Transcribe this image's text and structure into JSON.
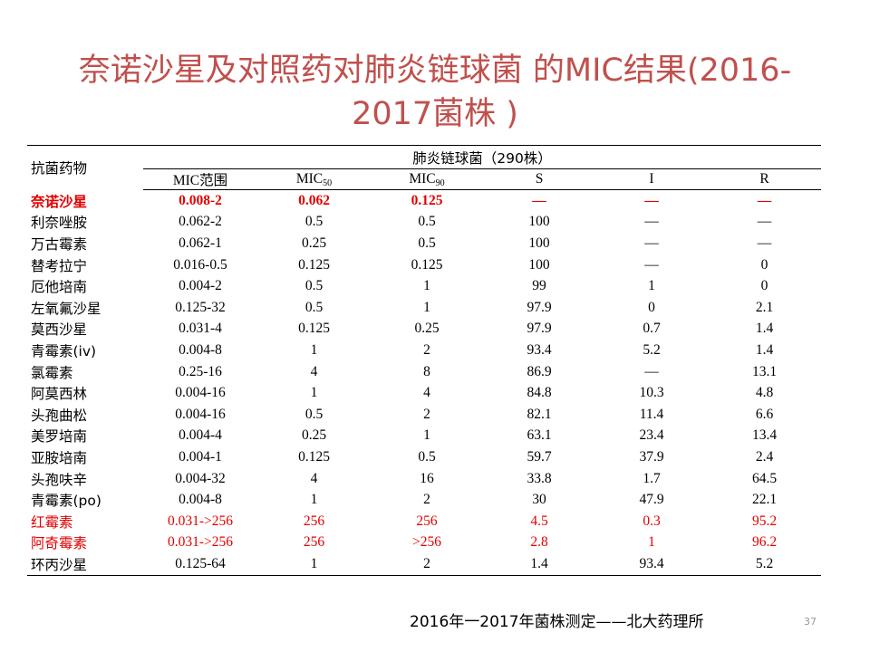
{
  "title_line1": "奈诺沙星及对照药对肺炎链球菌 的MIC结果(2016-",
  "title_line2": "2017菌株 )",
  "table": {
    "drug_header": "抗菌药物",
    "group_header": "肺炎链球菌（290株）",
    "col_range": "MIC范围",
    "col_mic50_base": "MIC",
    "col_mic50_sub": "50",
    "col_mic90_base": "MIC",
    "col_mic90_sub": "90",
    "col_s": "S",
    "col_i": "I",
    "col_r": "R",
    "rows": [
      {
        "name": "奈诺沙星",
        "range": "0.008-2",
        "mic50": "0.062",
        "mic90": "0.125",
        "s": "—",
        "i": "—",
        "r": "—"
      },
      {
        "name": "利奈唑胺",
        "range": "0.062-2",
        "mic50": "0.5",
        "mic90": "0.5",
        "s": "100",
        "i": "—",
        "r": "—"
      },
      {
        "name": "万古霉素",
        "range": "0.062-1",
        "mic50": "0.25",
        "mic90": "0.5",
        "s": "100",
        "i": "—",
        "r": "—"
      },
      {
        "name": "替考拉宁",
        "range": "0.016-0.5",
        "mic50": "0.125",
        "mic90": "0.125",
        "s": "100",
        "i": "—",
        "r": "0"
      },
      {
        "name": "厄他培南",
        "range": "0.004-2",
        "mic50": "0.5",
        "mic90": "1",
        "s": "99",
        "i": "1",
        "r": "0"
      },
      {
        "name": "左氧氟沙星",
        "range": "0.125-32",
        "mic50": "0.5",
        "mic90": "1",
        "s": "97.9",
        "i": "0",
        "r": "2.1"
      },
      {
        "name": "莫西沙星",
        "range": "0.031-4",
        "mic50": "0.125",
        "mic90": "0.25",
        "s": "97.9",
        "i": "0.7",
        "r": "1.4"
      },
      {
        "name": "青霉素(iv)",
        "range": "0.004-8",
        "mic50": "1",
        "mic90": "2",
        "s": "93.4",
        "i": "5.2",
        "r": "1.4"
      },
      {
        "name": "氯霉素",
        "range": "0.25-16",
        "mic50": "4",
        "mic90": "8",
        "s": "86.9",
        "i": "—",
        "r": "13.1"
      },
      {
        "name": "阿莫西林",
        "range": "0.004-16",
        "mic50": "1",
        "mic90": "4",
        "s": "84.8",
        "i": "10.3",
        "r": "4.8"
      },
      {
        "name": "头孢曲松",
        "range": "0.004-16",
        "mic50": "0.5",
        "mic90": "2",
        "s": "82.1",
        "i": "11.4",
        "r": "6.6"
      },
      {
        "name": "美罗培南",
        "range": "0.004-4",
        "mic50": "0.25",
        "mic90": "1",
        "s": "63.1",
        "i": "23.4",
        "r": "13.4"
      },
      {
        "name": "亚胺培南",
        "range": "0.004-1",
        "mic50": "0.125",
        "mic90": "0.5",
        "s": "59.7",
        "i": "37.9",
        "r": "2.4"
      },
      {
        "name": "头孢呋辛",
        "range": "0.004-32",
        "mic50": "4",
        "mic90": "16",
        "s": "33.8",
        "i": "1.7",
        "r": "64.5"
      },
      {
        "name": "青霉素(po)",
        "range": "0.004-8",
        "mic50": "1",
        "mic90": "2",
        "s": "30",
        "i": "47.9",
        "r": "22.1"
      },
      {
        "name": "红霉素",
        "range": "0.031->256",
        "mic50": "256",
        "mic90": "256",
        "s": "4.5",
        "i": "0.3",
        "r": "95.2"
      },
      {
        "name": "阿奇霉素",
        "range": "0.031->256",
        "mic50": "256",
        "mic90": ">256",
        "s": "2.8",
        "i": "1",
        "r": "96.2"
      },
      {
        "name": "环丙沙星",
        "range": "0.125-64",
        "mic50": "1",
        "mic90": "2",
        "s": "1.4",
        "i": "93.4",
        "r": "5.2"
      }
    ]
  },
  "footer": "2016年一2017年菌株测定——北大药理所",
  "page_number": "37",
  "colors": {
    "title": "#c0504d",
    "highlight": "#e30000"
  }
}
